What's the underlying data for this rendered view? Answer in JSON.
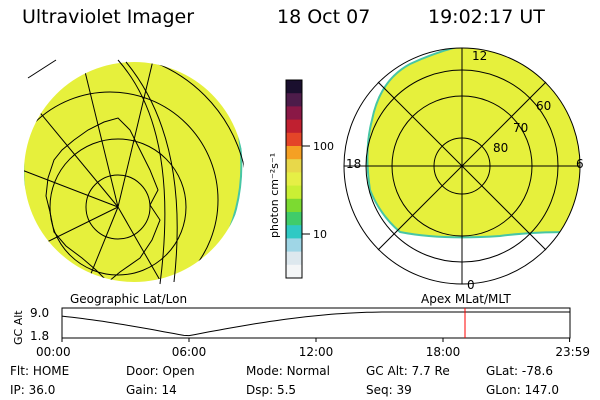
{
  "header": {
    "instrument": "Ultraviolet Imager",
    "date": "18 Oct 07",
    "time": "19:02:17 UT"
  },
  "colorbar": {
    "unit_label": "photon cm⁻²s⁻¹",
    "ticks": [
      "100",
      "10"
    ],
    "colors": [
      "#1a0f2e",
      "#4d1c4a",
      "#8a1846",
      "#c02030",
      "#e44528",
      "#f5a023",
      "#e8d84a",
      "#e6ef46",
      "#caef34",
      "#7cda31",
      "#40cc6a",
      "#30c9c4",
      "#9fd6e6",
      "#dde8ee",
      "#f4f6f7"
    ]
  },
  "panels": {
    "left": {
      "label": "Geographic Lat/Lon",
      "fill_color": "#e6f03c",
      "edge_color": "#47c6a5"
    },
    "right": {
      "label": "Apex  MLat/MLT",
      "lat_labels": [
        "80",
        "70",
        "60"
      ],
      "mlt_labels": {
        "top": "12",
        "right": "6",
        "bottom": "0",
        "left": "18"
      },
      "fill_color": "#e6f03c"
    }
  },
  "timeline": {
    "ylabel": "GC Alt",
    "ytick_top": "9.0",
    "ytick_bottom": "1.8",
    "xticks": [
      "00:00",
      "06:00",
      "12:00",
      "18:00",
      "23:59"
    ],
    "marker_time_hours": 19.04,
    "marker_color": "#ff0000"
  },
  "info": {
    "row1": [
      {
        "label": "Flt:",
        "value": "HOME"
      },
      {
        "label": "Door:",
        "value": "Open"
      },
      {
        "label": "Mode:",
        "value": "Normal"
      },
      {
        "label": "GC Alt:",
        "value": "7.7 Re"
      },
      {
        "label": "GLat:",
        "value": "-78.6"
      }
    ],
    "row2": [
      {
        "label": "IP:",
        "value": "36.0"
      },
      {
        "label": "Gain:",
        "value": "14"
      },
      {
        "label": "Dsp:",
        "value": "5.5"
      },
      {
        "label": "Seq:",
        "value": "39"
      },
      {
        "label": "GLon:",
        "value": "147.0"
      }
    ]
  }
}
